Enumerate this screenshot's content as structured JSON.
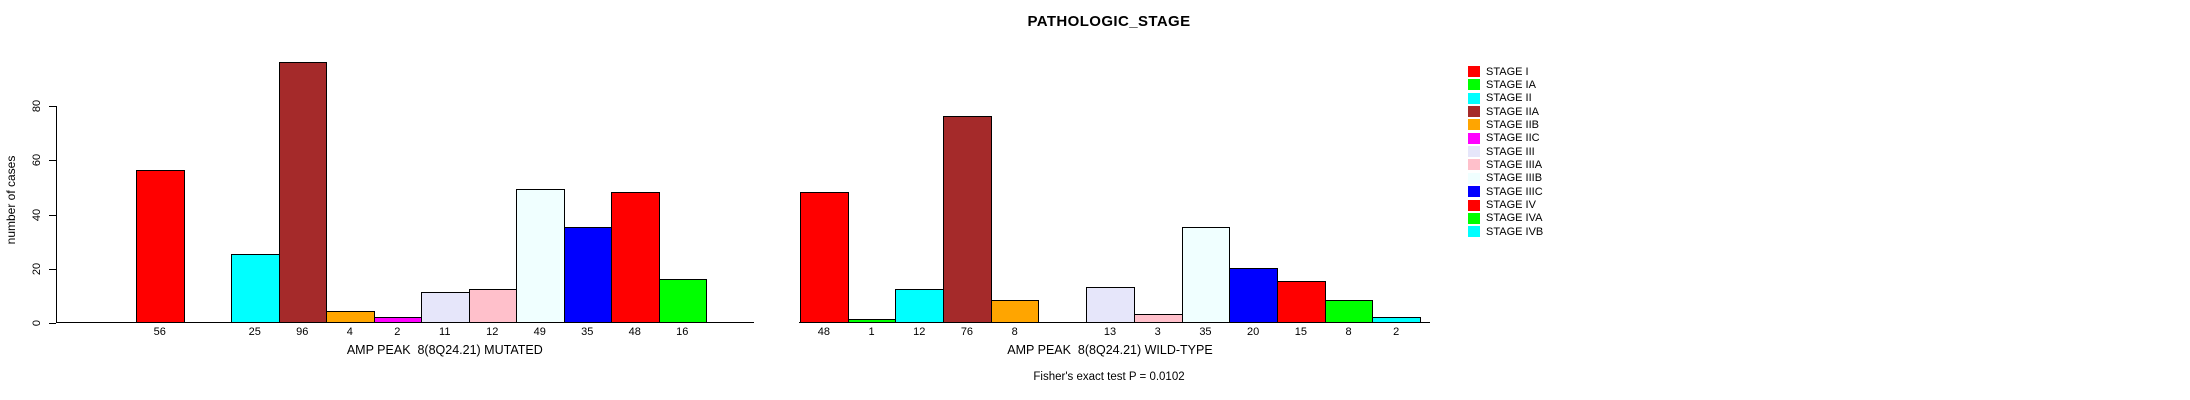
{
  "title": "PATHOLOGIC_STAGE",
  "footer": "Fisher's exact test P = 0.0102",
  "chart_data": {
    "type": "bar",
    "title": "PATHOLOGIC_STAGE",
    "ylabel": "number of cases",
    "ylim": [
      0,
      96
    ],
    "yticks": [
      0,
      20,
      40,
      60,
      80
    ],
    "grid": false,
    "legend_position": "right",
    "categories": [
      "STAGE I",
      "STAGE IA",
      "STAGE II",
      "STAGE IIA",
      "STAGE IIB",
      "STAGE IIC",
      "STAGE III",
      "STAGE IIIA",
      "STAGE IIIB",
      "STAGE IIIC",
      "STAGE IV",
      "STAGE IVA",
      "STAGE IVB"
    ],
    "colors": [
      "#FF0000",
      "#00FF00",
      "#00FFFF",
      "#A52A2A",
      "#FFA500",
      "#FF00FF",
      "#E6E6FA",
      "#FFC0CB",
      "#F0FFFF",
      "#0000FF",
      "#FF0000",
      "#00FF00",
      "#00FFFF"
    ],
    "series": [
      {
        "name": "AMP PEAK  8(8Q24.21) MUTATED",
        "values": [
          56,
          0,
          25,
          96,
          4,
          2,
          11,
          12,
          49,
          35,
          48,
          16,
          0
        ]
      },
      {
        "name": "AMP PEAK  8(8Q24.21) WILD-TYPE",
        "values": [
          48,
          1,
          12,
          76,
          8,
          0,
          13,
          3,
          35,
          20,
          15,
          8,
          2
        ]
      }
    ],
    "bar_value_labels_shown": true,
    "annotations": [
      "Fisher's exact test P = 0.0102"
    ]
  },
  "legend": {
    "items": [
      {
        "label": "STAGE I",
        "color": "#FF0000"
      },
      {
        "label": "STAGE IA",
        "color": "#00FF00"
      },
      {
        "label": "STAGE II",
        "color": "#00FFFF"
      },
      {
        "label": "STAGE IIA",
        "color": "#A52A2A"
      },
      {
        "label": "STAGE IIB",
        "color": "#FFA500"
      },
      {
        "label": "STAGE IIC",
        "color": "#FF00FF"
      },
      {
        "label": "STAGE III",
        "color": "#E6E6FA"
      },
      {
        "label": "STAGE IIIA",
        "color": "#FFC0CB"
      },
      {
        "label": "STAGE IIIB",
        "color": "#F0FFFF"
      },
      {
        "label": "STAGE IIIC",
        "color": "#0000FF"
      },
      {
        "label": "STAGE IV",
        "color": "#FF0000"
      },
      {
        "label": "STAGE IVA",
        "color": "#00FF00"
      },
      {
        "label": "STAGE IVB",
        "color": "#00FFFF"
      }
    ]
  }
}
